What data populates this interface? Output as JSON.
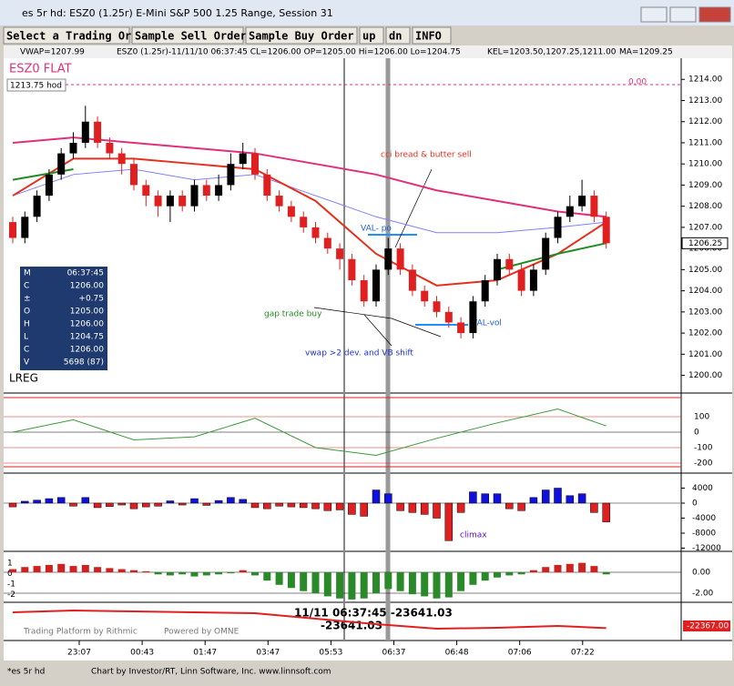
{
  "window": {
    "title": "es 5r hd: ESZ0 (1.25r) E-Mini S&P 500 1.25 Range, Session 31",
    "status_left": "*es 5r hd",
    "status_right": "Chart by Investor/RT, Linn Software, Inc. www.linnsoft.com"
  },
  "toolbar": [
    "Select a Trading Order",
    "Sample Sell Order",
    "Sample Buy Order",
    "up",
    "dn",
    "INFO"
  ],
  "legend": [
    "VWAP=1207.99",
    "ESZ0 (1.25r)-11/11/10 06:37:45 CL=1206.00 OP=1205.00 Hi=1206.00 Lo=1204.75",
    "KEL=1203.50,1207.25,1211.00",
    "MA=1209.25"
  ],
  "price_panel": {
    "symbol_label": "ESZ0 FLAT",
    "hod_label": "1213.75 hod",
    "zero_label": "0.00",
    "lreg_label": "LREG",
    "last_price_label": "1206.25",
    "ylim": [
      1199.25,
      1215
    ],
    "yticks": [
      {
        "value": 1200,
        "label": "1200.00"
      },
      {
        "value": 1201,
        "label": "1201.00"
      },
      {
        "value": 1202,
        "label": "1202.00"
      },
      {
        "value": 1203,
        "label": "1203.00"
      },
      {
        "value": 1204,
        "label": "1204.00"
      },
      {
        "value": 1205,
        "label": "1205.00"
      },
      {
        "value": 1206,
        "label": "1206.00"
      },
      {
        "value": 1207,
        "label": "1207.00"
      },
      {
        "value": 1208,
        "label": "1208.00"
      },
      {
        "value": 1209,
        "label": "1209.00"
      },
      {
        "value": 1210,
        "label": "1210.00"
      },
      {
        "value": 1211,
        "label": "1211.00"
      },
      {
        "value": 1212,
        "label": "1212.00"
      },
      {
        "value": 1213,
        "label": "1213.00"
      },
      {
        "value": 1214,
        "label": "1214.00"
      }
    ],
    "open": [
      1207.25,
      1206.5,
      1207.5,
      1208.5,
      1209.5,
      1210.5,
      1211,
      1212,
      1211,
      1210.5,
      1210,
      1209,
      1208.5,
      1208,
      1208.5,
      1208,
      1209,
      1208.5,
      1209,
      1210,
      1210.5,
      1209.5,
      1208.5,
      1208,
      1207.5,
      1207,
      1206.5,
      1206,
      1205.5,
      1204.5,
      1203.5,
      1205,
      1206,
      1205,
      1204,
      1203.5,
      1203,
      1202.5,
      1202,
      1203.5,
      1204.5,
      1205.5,
      1205,
      1204,
      1205,
      1206.5,
      1207.5,
      1208,
      1208.5,
      1207.5
    ],
    "high": [
      1207.5,
      1207.75,
      1208.75,
      1209.75,
      1210.75,
      1211.5,
      1212.75,
      1212.25,
      1211.25,
      1210.75,
      1210.25,
      1209.25,
      1208.75,
      1208.75,
      1208.75,
      1209.25,
      1209.25,
      1209.5,
      1210.5,
      1211,
      1210.75,
      1209.75,
      1208.75,
      1208.25,
      1207.75,
      1207.25,
      1206.75,
      1206.25,
      1205.75,
      1204.75,
      1205.25,
      1206.5,
      1206.25,
      1205.25,
      1204.25,
      1203.75,
      1203.25,
      1202.75,
      1203.75,
      1204.75,
      1205.75,
      1205.75,
      1205.25,
      1205.25,
      1206.75,
      1207.75,
      1208.5,
      1209.25,
      1208.75,
      1207.75
    ],
    "low": [
      1206.25,
      1206.25,
      1207.25,
      1208.25,
      1209.25,
      1210.25,
      1210.75,
      1210.75,
      1210.25,
      1209.5,
      1208.75,
      1208,
      1207.5,
      1207.25,
      1207.75,
      1207.75,
      1208.25,
      1208.25,
      1208.75,
      1209.75,
      1209.25,
      1208.25,
      1207.75,
      1207.25,
      1206.75,
      1206.25,
      1205.75,
      1205,
      1204.25,
      1203.25,
      1203.25,
      1204.75,
      1204.75,
      1203.75,
      1203.25,
      1202.75,
      1202.25,
      1201.75,
      1201.75,
      1203.25,
      1204.25,
      1204.75,
      1203.75,
      1203.75,
      1204.75,
      1206.25,
      1207.25,
      1207.75,
      1207.25,
      1206
    ],
    "close": [
      1206.5,
      1207.5,
      1208.5,
      1209.5,
      1210.5,
      1211,
      1212,
      1211,
      1210.5,
      1210,
      1209,
      1208.5,
      1208,
      1208.5,
      1208,
      1209,
      1208.5,
      1209,
      1210,
      1210.5,
      1209.5,
      1208.5,
      1208,
      1207.5,
      1207,
      1206.5,
      1206,
      1205.5,
      1204.5,
      1203.5,
      1205,
      1206,
      1205,
      1204,
      1203.5,
      1203,
      1202.5,
      1202,
      1203.5,
      1204.5,
      1205.5,
      1205,
      1204,
      1205,
      1206.5,
      1207.5,
      1208,
      1208.5,
      1207.5,
      1206.25
    ],
    "line_x": [
      0,
      5,
      10,
      15,
      20,
      25,
      30,
      35,
      40,
      45,
      49
    ],
    "lines": [
      {
        "color": "#e0307a",
        "values": [
          1211,
          1211.25,
          1211,
          1210.75,
          1210.5,
          1210,
          1209.5,
          1208.75,
          1208.25,
          1207.75,
          1207.5
        ]
      },
      {
        "color": "#8080ff",
        "values": [
          1208.5,
          1209.5,
          1209.75,
          1209.25,
          1209.5,
          1208.5,
          1207.5,
          1206.75,
          1206.75,
          1207,
          1207.25
        ]
      },
      {
        "color": "#e53020",
        "values": [
          1208.5,
          1210.25,
          1210.25,
          1210,
          1209.75,
          1208.25,
          1205.75,
          1204.25,
          1204.5,
          1205.75,
          1207.25
        ]
      },
      {
        "color": "#228b22",
        "values": [
          1209.25,
          1209.75,
          null,
          null,
          null,
          null,
          null,
          null,
          1205,
          1205.75,
          1206.25
        ]
      }
    ],
    "annotations": [
      "cci bread & butter sell",
      "VAL- po",
      "gap trade buy",
      "VAL-vol",
      "vwap >2 dev. and VB shift"
    ]
  },
  "data_box": {
    "keys": [
      "M",
      "C",
      "±",
      "O",
      "H",
      "L",
      "C",
      "V"
    ],
    "values": [
      "06:37:45",
      "1206.00",
      "+0.75",
      "1205.00",
      "1206.00",
      "1204.75",
      "1206.00",
      "5698 (87)"
    ]
  },
  "cci_panel": {
    "yticks": [
      100,
      0,
      -100,
      -200
    ],
    "values": [
      0,
      80,
      -50,
      -30,
      90,
      -100,
      -150,
      -40,
      60,
      150,
      40
    ]
  },
  "delta_panel": {
    "yticks": [
      4000,
      0,
      -4000,
      -8000,
      -12000
    ],
    "annotation": "climax",
    "values": [
      -1000,
      500,
      800,
      1200,
      1500,
      -800,
      1500,
      -1200,
      -900,
      -500,
      -1500,
      -1000,
      -800,
      600,
      -500,
      1200,
      -600,
      700,
      1500,
      1000,
      -1200,
      -1500,
      -800,
      -1000,
      -1200,
      -1500,
      -2000,
      -1800,
      -3000,
      -3500,
      3500,
      2500,
      -2000,
      -2500,
      -3000,
      -4000,
      -10000,
      -2500,
      3000,
      2500,
      2500,
      -1500,
      -2000,
      1500,
      3500,
      4000,
      2000,
      2500,
      -2500,
      -5000
    ]
  },
  "hist_panel": {
    "yticks": [
      {
        "value": 0,
        "label": "0.00"
      },
      {
        "value": -2,
        "label": "-2.00"
      }
    ],
    "left_labels": [
      "1",
      "0",
      "-1",
      "-2"
    ],
    "values": [
      0.3,
      0.5,
      0.6,
      0.7,
      0.8,
      0.6,
      0.7,
      0.5,
      0.4,
      0.3,
      0.2,
      0.1,
      -0.2,
      -0.3,
      -0.2,
      -0.4,
      -0.3,
      -0.2,
      -0.1,
      0.2,
      -0.3,
      -0.8,
      -1.2,
      -1.5,
      -1.8,
      -2.0,
      -2.3,
      -2.5,
      -2.6,
      -2.5,
      -2.0,
      -1.6,
      -1.8,
      -2.1,
      -2.3,
      -2.5,
      -2.4,
      -1.8,
      -1.2,
      -0.8,
      -0.5,
      -0.3,
      -0.2,
      0.2,
      0.5,
      0.7,
      0.8,
      0.9,
      0.6,
      -0.2
    ]
  },
  "bottom_panel": {
    "values": [
      -5000,
      -3000,
      -4000,
      -5000,
      -6000,
      -12000,
      -18000,
      -23000,
      -22000,
      -20000,
      -22367
    ],
    "last_label": "-22367.00",
    "cursor_label": "11/11 06:37:45  -23641.03",
    "cursor_value": "-23641.03",
    "branding": [
      "Trading Platform by Rithmic",
      "Powered by OMNE"
    ]
  },
  "time_axis": [
    "23:07",
    "00:43",
    "01:47",
    "03:47",
    "05:53",
    "06:37",
    "06:48",
    "07:06",
    "07:22"
  ]
}
